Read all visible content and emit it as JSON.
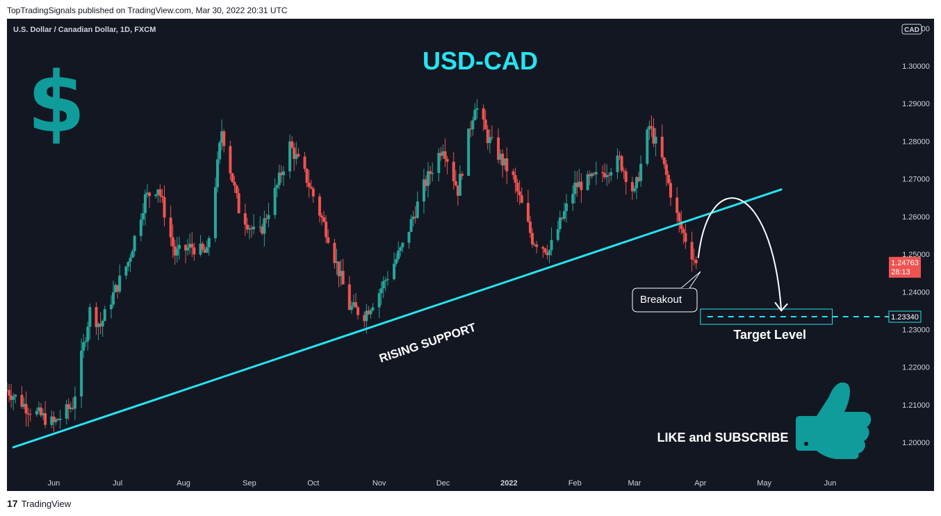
{
  "header": {
    "published": "TopTradingSignals published on TradingView.com, Mar 30, 2022 20:31 UTC",
    "symbol": "U.S. Dollar / Canadian Dollar, 1D, FXCM"
  },
  "footer": {
    "brand": "TradingView",
    "logo_glyph": "17"
  },
  "colors": {
    "bg": "#131722",
    "up": "#26a69a",
    "down": "#ef5350",
    "cyan": "#26e4f0",
    "teal": "#0f9c9b"
  },
  "annotations": {
    "title": "USD-CAD",
    "dollar": "$",
    "rising_support": "RISING SUPPORT",
    "breakout": "Breakout",
    "target_level": "Target Level",
    "like_subscribe": "LIKE and SUBSCRIBE",
    "thumbs_icon": "thumbs-up-icon"
  },
  "chart_data": {
    "type": "candlestick",
    "symbol": "U.S. Dollar / Canadian Dollar, 1D, FXCM",
    "ylim": [
      1.193,
      1.312
    ],
    "y_ticks": [
      "1.20000",
      "1.21000",
      "1.22000",
      "1.23000",
      "1.24000",
      "1.25000",
      "1.26000",
      "1.27000",
      "1.28000",
      "1.29000",
      "1.30000",
      "1.31000"
    ],
    "x_labels": [
      {
        "label": "Jun",
        "date": "2021-06-01"
      },
      {
        "label": "Jul",
        "date": "2021-07-01"
      },
      {
        "label": "Aug",
        "date": "2021-08-01"
      },
      {
        "label": "Sep",
        "date": "2021-09-01"
      },
      {
        "label": "Oct",
        "date": "2021-10-01"
      },
      {
        "label": "Nov",
        "date": "2021-11-01"
      },
      {
        "label": "Dec",
        "date": "2021-12-01"
      },
      {
        "label": "2022",
        "date": "2022-01-01"
      },
      {
        "label": "Feb",
        "date": "2022-02-01"
      },
      {
        "label": "Mar",
        "date": "2022-03-01"
      },
      {
        "label": "Apr",
        "date": "2022-04-01"
      },
      {
        "label": "May",
        "date": "2022-05-01"
      },
      {
        "label": "Jun",
        "date": "2022-06-01"
      }
    ],
    "x_range": [
      "2021-05-10",
      "2022-06-25"
    ],
    "close_path": [
      {
        "date": "2021-05-10",
        "close": 1.214
      },
      {
        "date": "2021-05-20",
        "close": 1.209
      },
      {
        "date": "2021-06-01",
        "close": 1.205
      },
      {
        "date": "2021-06-10",
        "close": 1.21
      },
      {
        "date": "2021-06-18",
        "close": 1.235
      },
      {
        "date": "2021-06-23",
        "close": 1.231
      },
      {
        "date": "2021-06-28",
        "close": 1.238
      },
      {
        "date": "2021-07-06",
        "close": 1.248
      },
      {
        "date": "2021-07-14",
        "close": 1.265
      },
      {
        "date": "2021-07-20",
        "close": 1.268
      },
      {
        "date": "2021-07-28",
        "close": 1.25
      },
      {
        "date": "2021-08-05",
        "close": 1.252
      },
      {
        "date": "2021-08-12",
        "close": 1.25
      },
      {
        "date": "2021-08-19",
        "close": 1.283
      },
      {
        "date": "2021-08-27",
        "close": 1.262
      },
      {
        "date": "2021-09-05",
        "close": 1.254
      },
      {
        "date": "2021-09-14",
        "close": 1.268
      },
      {
        "date": "2021-09-20",
        "close": 1.279
      },
      {
        "date": "2021-09-28",
        "close": 1.27
      },
      {
        "date": "2021-10-08",
        "close": 1.255
      },
      {
        "date": "2021-10-18",
        "close": 1.236
      },
      {
        "date": "2021-10-25",
        "close": 1.234
      },
      {
        "date": "2021-11-01",
        "close": 1.24
      },
      {
        "date": "2021-11-12",
        "close": 1.252
      },
      {
        "date": "2021-11-22",
        "close": 1.268
      },
      {
        "date": "2021-12-01",
        "close": 1.279
      },
      {
        "date": "2021-12-08",
        "close": 1.267
      },
      {
        "date": "2021-12-16",
        "close": 1.29
      },
      {
        "date": "2021-12-22",
        "close": 1.281
      },
      {
        "date": "2022-01-03",
        "close": 1.27
      },
      {
        "date": "2022-01-12",
        "close": 1.254
      },
      {
        "date": "2022-01-20",
        "close": 1.251
      },
      {
        "date": "2022-02-01",
        "close": 1.268
      },
      {
        "date": "2022-02-10",
        "close": 1.27
      },
      {
        "date": "2022-02-22",
        "close": 1.275
      },
      {
        "date": "2022-03-01",
        "close": 1.266
      },
      {
        "date": "2022-03-08",
        "close": 1.284
      },
      {
        "date": "2022-03-14",
        "close": 1.275
      },
      {
        "date": "2022-03-22",
        "close": 1.258
      },
      {
        "date": "2022-03-30",
        "close": 1.2476
      }
    ],
    "rising_support_line": [
      {
        "date": "2021-05-13",
        "price": 1.1987
      },
      {
        "date": "2022-05-09",
        "price": 1.2672
      }
    ],
    "projection_arrow": [
      {
        "date": "2022-03-31",
        "price": 1.249
      },
      {
        "date": "2022-04-15",
        "price": 1.259
      },
      {
        "date": "2022-05-09",
        "price": 1.235
      }
    ],
    "target_level": 1.2334,
    "target_label": "1.23340",
    "last_price": "1.24763",
    "countdown": "28:13",
    "currency": "CAD"
  }
}
